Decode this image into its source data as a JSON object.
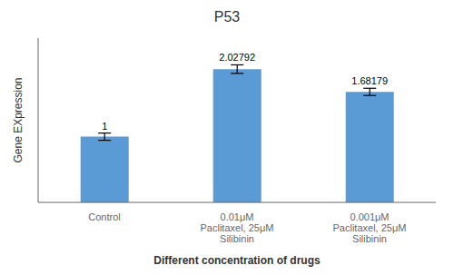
{
  "chart_data": {
    "type": "bar",
    "title": "P53",
    "xlabel": "Different concentration of drugs",
    "ylabel": "Gene EXpression",
    "categories": [
      "Control",
      "0.01μM\nPaclitaxel, 25μM\nSilibinin",
      "0.001μM\nPaclitaxel, 25μM\nSilibinin"
    ],
    "values": [
      1.0,
      2.02792,
      1.68179
    ],
    "errors": [
      0.055,
      0.065,
      0.055
    ],
    "value_labels": [
      "1",
      "2.02792",
      "1.68179"
    ],
    "data_labels": true,
    "color": "#5B9BD5",
    "ylim": [
      0,
      2.5
    ],
    "tick_labels": "x",
    "grid": false
  }
}
